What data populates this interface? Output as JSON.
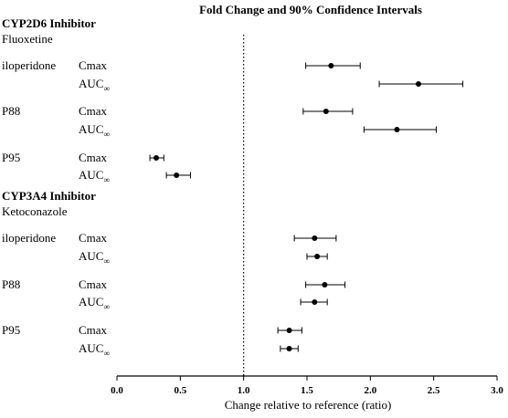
{
  "chart_data": {
    "type": "scatter",
    "title": "Fold  Change and 90% Confidence Intervals",
    "xlabel": "Change relative to reference (ratio)",
    "xlim": [
      0.0,
      3.0
    ],
    "xticks": [
      "0.0",
      "0.5",
      "1.0",
      "1.5",
      "2.0",
      "2.5",
      "3.0"
    ],
    "reference_value": 1.0,
    "groups": [
      {
        "header": "CYP2D6 Inhibitor",
        "subheader": "Fluoxetine",
        "rows": [
          {
            "analyte": "iloperidone",
            "param": "Cmax",
            "point": 1.69,
            "lower": 1.49,
            "upper": 1.92
          },
          {
            "analyte": "",
            "param": "AUC",
            "param_sub": "∞",
            "point": 2.38,
            "lower": 2.07,
            "upper": 2.73
          },
          {
            "analyte": "P88",
            "param": "Cmax",
            "point": 1.65,
            "lower": 1.47,
            "upper": 1.86
          },
          {
            "analyte": "",
            "param": "AUC",
            "param_sub": "∞",
            "point": 2.21,
            "lower": 1.95,
            "upper": 2.52
          },
          {
            "analyte": "P95",
            "param": "Cmax",
            "point": 0.31,
            "lower": 0.26,
            "upper": 0.37
          },
          {
            "analyte": "",
            "param": "AUC",
            "param_sub": "∞",
            "point": 0.47,
            "lower": 0.39,
            "upper": 0.58
          }
        ]
      },
      {
        "header": "CYP3A4 Inhibitor",
        "subheader": "Ketoconazole",
        "rows": [
          {
            "analyte": "iloperidone",
            "param": "Cmax",
            "point": 1.56,
            "lower": 1.4,
            "upper": 1.73
          },
          {
            "analyte": "",
            "param": "AUC",
            "param_sub": "∞",
            "point": 1.58,
            "lower": 1.5,
            "upper": 1.66
          },
          {
            "analyte": "P88",
            "param": "Cmax",
            "point": 1.64,
            "lower": 1.49,
            "upper": 1.8
          },
          {
            "analyte": "",
            "param": "AUC",
            "param_sub": "∞",
            "point": 1.56,
            "lower": 1.45,
            "upper": 1.66
          },
          {
            "analyte": "P95",
            "param": "Cmax",
            "point": 1.36,
            "lower": 1.27,
            "upper": 1.46
          },
          {
            "analyte": "",
            "param": "AUC",
            "param_sub": "∞",
            "point": 1.36,
            "lower": 1.29,
            "upper": 1.43
          }
        ]
      }
    ]
  }
}
